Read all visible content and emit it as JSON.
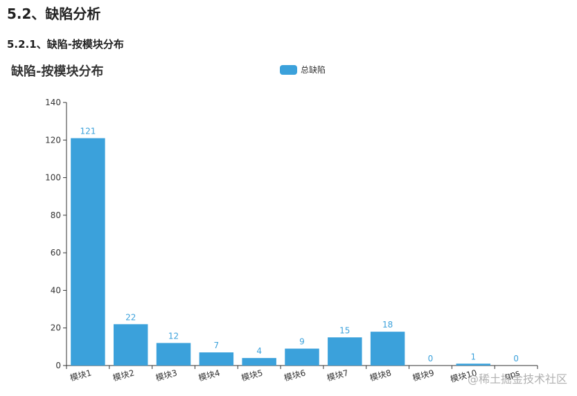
{
  "section": {
    "heading": "5.2、缺陷分析",
    "subheading": "5.2.1、缺陷-按模块分布"
  },
  "watermark": "@稀土掘金技术社区",
  "colors": {
    "bar": "#3ba1db",
    "axis": "#333333",
    "text": "#333333"
  },
  "chart_data": {
    "type": "bar",
    "title": "缺陷-按模块分布",
    "categories": [
      "模块1",
      "模块2",
      "模块3",
      "模块4",
      "模块5",
      "模块6",
      "模块7",
      "模块8",
      "模块9",
      "模块10",
      "qps"
    ],
    "series": [
      {
        "name": "总缺陷",
        "values": [
          121,
          22,
          12,
          7,
          4,
          9,
          15,
          18,
          0,
          1,
          0
        ]
      }
    ],
    "ylim": [
      0,
      140
    ],
    "yticks": [
      0,
      20,
      40,
      60,
      80,
      100,
      120,
      140
    ],
    "grid": false,
    "legend": "top-center",
    "data_labels": true
  }
}
